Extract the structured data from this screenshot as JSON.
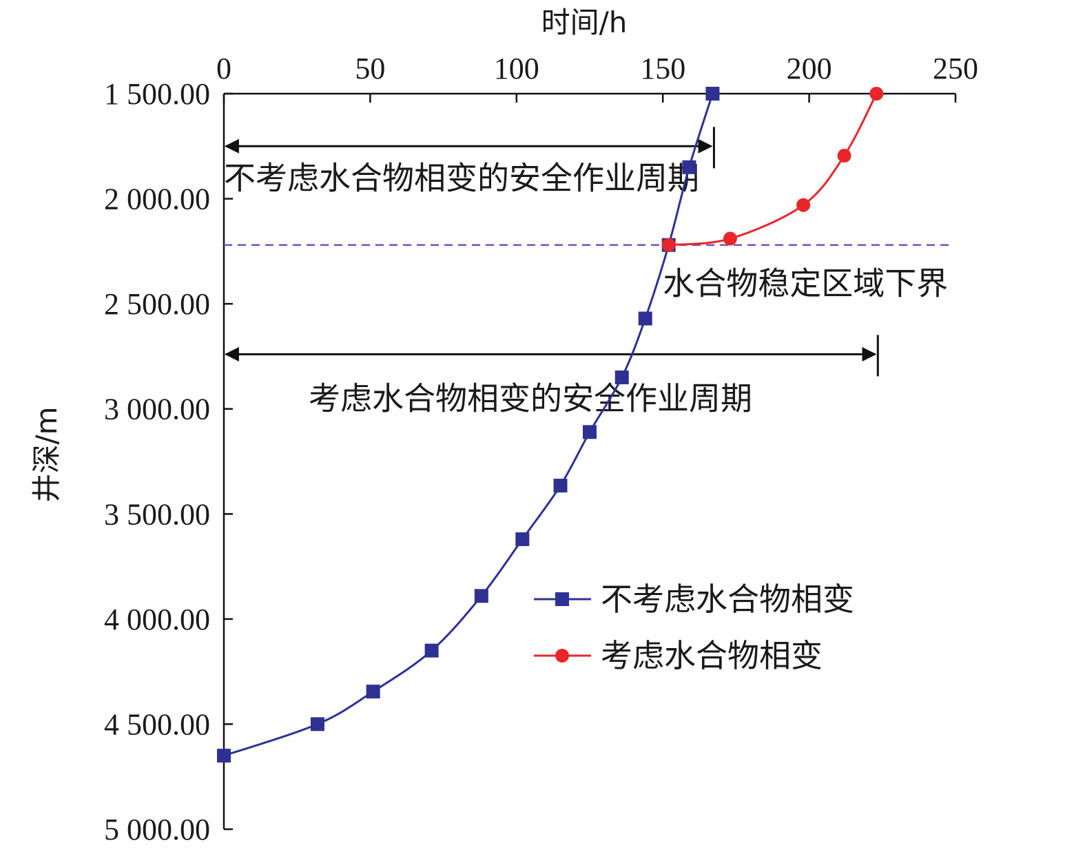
{
  "chart_data": {
    "type": "line",
    "title": "",
    "xlabel": "时间/h",
    "ylabel": "井深/m",
    "xlim": [
      0,
      250
    ],
    "ylim": [
      1500,
      5000
    ],
    "x_axis_position": "top",
    "y_axis_inverted": true,
    "x_ticks": [
      0,
      50,
      100,
      150,
      200,
      250
    ],
    "x_tick_labels": [
      "0",
      "50",
      "100",
      "150",
      "200",
      "250"
    ],
    "y_ticks": [
      1500,
      2000,
      2500,
      3000,
      3500,
      4000,
      4500,
      5000
    ],
    "y_tick_labels": [
      "1 500.00",
      "2 000.00",
      "2 500.00",
      "3 000.00",
      "3 500.00",
      "4 000.00",
      "4 500.00",
      "5 000.00"
    ],
    "grid": false,
    "legend_position": "center-right",
    "series": [
      {
        "name": "不考虑水合物相变",
        "color": "#2e3192",
        "marker": "square",
        "points": [
          {
            "x": 167,
            "y": 1500
          },
          {
            "x": 159,
            "y": 1850
          },
          {
            "x": 152,
            "y": 2220
          },
          {
            "x": 144,
            "y": 2570
          },
          {
            "x": 136,
            "y": 2850
          },
          {
            "x": 125,
            "y": 3110
          },
          {
            "x": 115,
            "y": 3365
          },
          {
            "x": 102,
            "y": 3620
          },
          {
            "x": 88,
            "y": 3890
          },
          {
            "x": 71,
            "y": 4150
          },
          {
            "x": 51,
            "y": 4345
          },
          {
            "x": 32,
            "y": 4500
          },
          {
            "x": 0,
            "y": 4650
          }
        ]
      },
      {
        "name": "考虑水合物相变",
        "color": "#e8262a",
        "marker": "circle",
        "points": [
          {
            "x": 152,
            "y": 2220
          },
          {
            "x": 173,
            "y": 2190
          },
          {
            "x": 198,
            "y": 2030
          },
          {
            "x": 212,
            "y": 1795
          },
          {
            "x": 223,
            "y": 1500
          }
        ]
      }
    ],
    "annotations": {
      "hydrate_boundary": {
        "label": "水合物稳定区域下界",
        "depth": 2220,
        "color": "#7b4fb8"
      },
      "period_without": {
        "label": "不考虑水合物相变的安全作业周期",
        "x_start": 0,
        "x_end": 167,
        "depth": 1750
      },
      "period_with": {
        "label": "考虑水合物相变的安全作业周期",
        "x_start": 0,
        "x_end": 223,
        "depth": 2740
      }
    }
  }
}
